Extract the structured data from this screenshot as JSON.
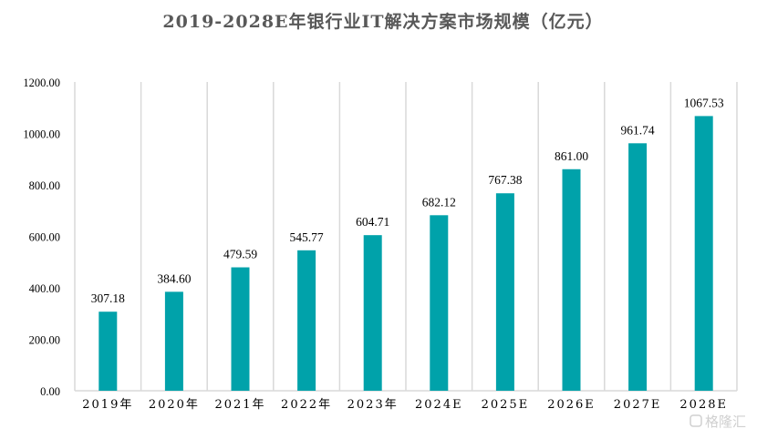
{
  "watermark": "格隆汇",
  "chart_data": {
    "type": "bar",
    "title": "2019-2028E年银行业IT解决方案市场规模（亿元）",
    "categories": [
      "2019年",
      "2020年",
      "2021年",
      "2022年",
      "2023年",
      "2024E",
      "2025E",
      "2026E",
      "2027E",
      "2028E"
    ],
    "values": [
      307.18,
      384.6,
      479.59,
      545.77,
      604.71,
      682.12,
      767.38,
      861.0,
      961.74,
      1067.53
    ],
    "value_labels": [
      "307.18",
      "384.60",
      "479.59",
      "545.77",
      "604.71",
      "682.12",
      "767.38",
      "861.00",
      "961.74",
      "1067.53"
    ],
    "yticks": [
      "0.00",
      "200.00",
      "400.00",
      "600.00",
      "800.00",
      "1000.00",
      "1200.00"
    ],
    "ylim": [
      0,
      1200
    ],
    "xlabel": "",
    "ylabel": "",
    "grid": "vertical category separators",
    "legend": "none",
    "color": "#00A2AA"
  }
}
